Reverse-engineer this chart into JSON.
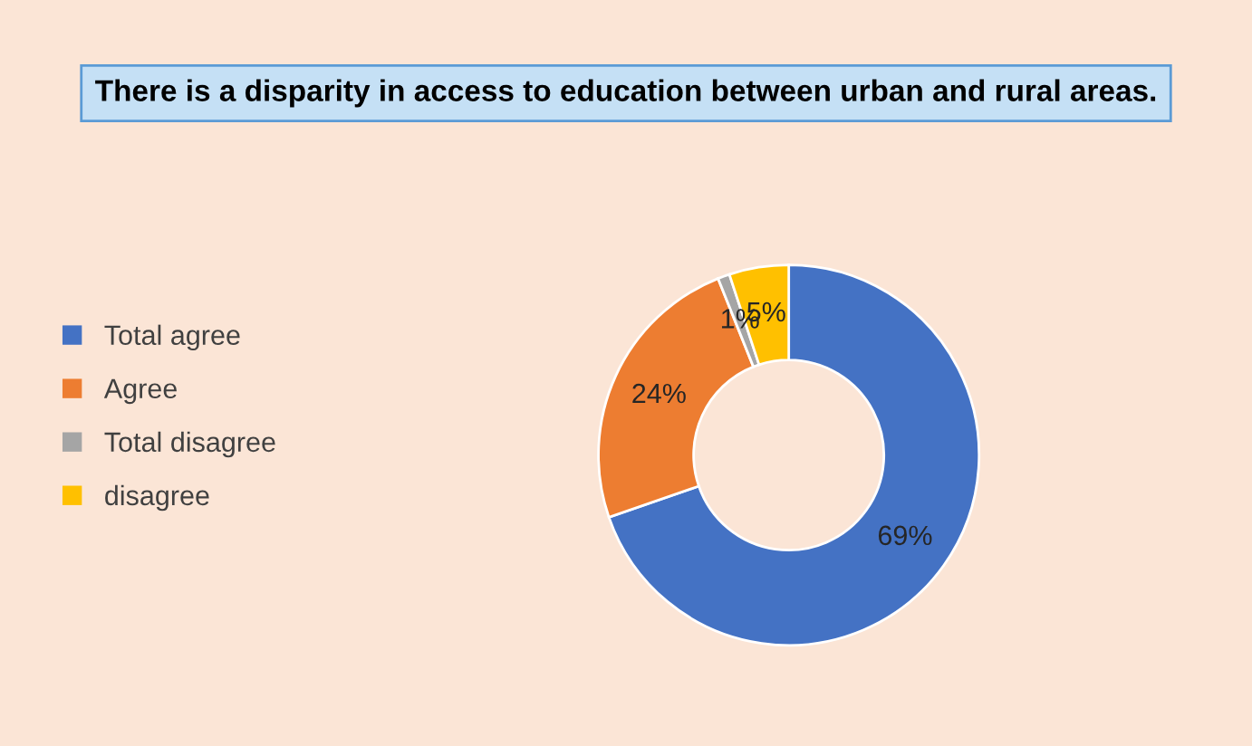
{
  "chart_data": {
    "type": "donut",
    "title": "There is a disparity in access to education between urban and rural areas.",
    "categories": [
      "Total agree",
      "Agree",
      "Total disagree",
      "disagree"
    ],
    "values": [
      69,
      24,
      1,
      5
    ],
    "colors": [
      "#4472c4",
      "#ed7d31",
      "#a5a5a5",
      "#ffc000"
    ],
    "value_labels": [
      "69%",
      "24%",
      "1%",
      "5%"
    ],
    "legend": "left"
  }
}
